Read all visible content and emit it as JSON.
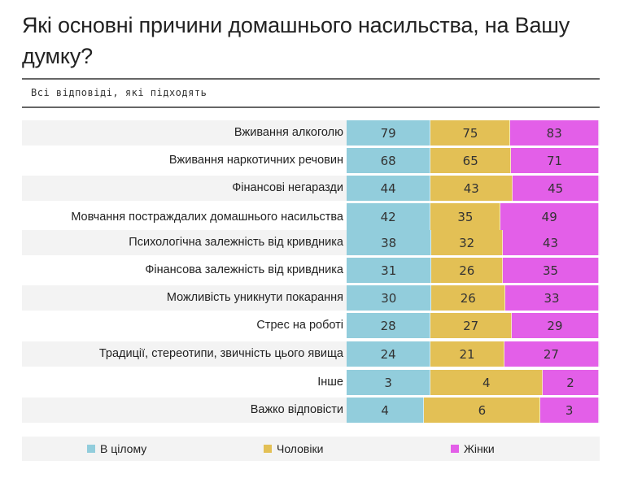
{
  "chart_data": {
    "type": "bar",
    "stacked": true,
    "orientation": "horizontal",
    "title": "Які основні причини домашнього насильства, на Вашу думку?",
    "subtitle": "Всі відповіді, які підходять",
    "categories": [
      "Вживання алкоголю",
      "Вживання наркотичних речовин",
      "Фінансові негаразди",
      "Мовчання постраждалих домашнього насильства",
      "Психологічна залежність від кривдника",
      "Фінансова залежність від кривдника",
      "Можливість уникнути покарання",
      "Стрес на роботі",
      "Традиції, стереотипи, звичність цього явища",
      "Інше",
      "Важко відповісти"
    ],
    "series": [
      {
        "name": "В цілому",
        "color": "#92cddc",
        "values": [
          79,
          68,
          44,
          42,
          38,
          31,
          30,
          28,
          24,
          3,
          4
        ]
      },
      {
        "name": "Чоловіки",
        "color": "#e3c055",
        "values": [
          75,
          65,
          43,
          35,
          32,
          26,
          26,
          27,
          21,
          4,
          6
        ]
      },
      {
        "name": "Жінки",
        "color": "#e35fe8",
        "values": [
          83,
          71,
          45,
          49,
          43,
          35,
          33,
          29,
          27,
          2,
          3
        ]
      }
    ],
    "legend_position": "bottom",
    "grid": false
  }
}
